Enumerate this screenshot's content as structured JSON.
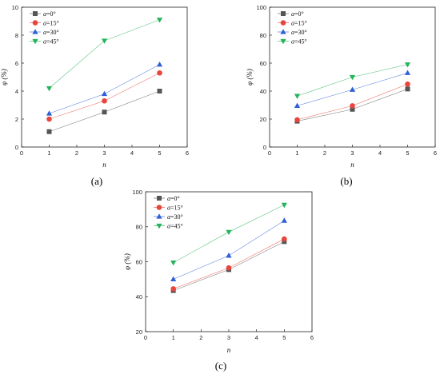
{
  "figure": {
    "panel_labels": [
      "(a)",
      "(b)",
      "(c)"
    ]
  },
  "series_style": [
    {
      "color": "#555555",
      "marker": "square"
    },
    {
      "color": "#e8453c",
      "marker": "circle"
    },
    {
      "color": "#2f5fd6",
      "marker": "triangle-up"
    },
    {
      "color": "#25b35a",
      "marker": "triangle-down"
    }
  ],
  "chart_data": [
    {
      "type": "line",
      "xlabel": "n",
      "ylabel": "φ (%)",
      "xlim": [
        0,
        6
      ],
      "ylim": [
        0,
        10
      ],
      "xticks": [
        0,
        1,
        2,
        3,
        4,
        5,
        6
      ],
      "yticks": [
        0,
        2,
        4,
        6,
        8,
        10
      ],
      "legend_position": "top-left",
      "x": [
        1,
        3,
        5
      ],
      "series": [
        {
          "name_var": "a",
          "name_rest": "=0°",
          "values": [
            1.1,
            2.5,
            4.0
          ]
        },
        {
          "name_var": "a",
          "name_rest": "=15°",
          "values": [
            2.0,
            3.3,
            5.3
          ]
        },
        {
          "name_var": "a",
          "name_rest": "=30°",
          "values": [
            2.4,
            3.8,
            5.9
          ]
        },
        {
          "name_var": "a",
          "name_rest": "=45°",
          "values": [
            4.2,
            7.6,
            9.1
          ]
        }
      ]
    },
    {
      "type": "line",
      "xlabel": "n",
      "ylabel": "φ (%)",
      "xlim": [
        0,
        6
      ],
      "ylim": [
        0,
        100
      ],
      "xticks": [
        0,
        1,
        2,
        3,
        4,
        5,
        6
      ],
      "yticks": [
        0,
        20,
        40,
        60,
        80,
        100
      ],
      "legend_position": "top-left",
      "x": [
        1,
        3,
        5
      ],
      "series": [
        {
          "name_var": "a",
          "name_rest": "=0°",
          "values": [
            18.5,
            27,
            41.5
          ]
        },
        {
          "name_var": "a",
          "name_rest": "=15°",
          "values": [
            19.5,
            29.5,
            45
          ]
        },
        {
          "name_var": "a",
          "name_rest": "=30°",
          "values": [
            29.5,
            41,
            53
          ]
        },
        {
          "name_var": "a",
          "name_rest": "=45°",
          "values": [
            36.5,
            50,
            59
          ]
        }
      ]
    },
    {
      "type": "line",
      "xlabel": "n",
      "ylabel": "φ (%)",
      "xlim": [
        0,
        6
      ],
      "ylim": [
        20,
        100
      ],
      "xticks": [
        0,
        1,
        2,
        3,
        4,
        5,
        6
      ],
      "yticks": [
        20,
        40,
        60,
        80,
        100
      ],
      "legend_position": "top-left",
      "x": [
        1,
        3,
        5
      ],
      "series": [
        {
          "name_var": "a",
          "name_rest": "=0°",
          "values": [
            43.5,
            55.5,
            71.5
          ]
        },
        {
          "name_var": "a",
          "name_rest": "=15°",
          "values": [
            44.5,
            56.5,
            73
          ]
        },
        {
          "name_var": "a",
          "name_rest": "=30°",
          "values": [
            50,
            63.5,
            83.5
          ]
        },
        {
          "name_var": "a",
          "name_rest": "=45°",
          "values": [
            59.5,
            77,
            92.5
          ]
        }
      ]
    }
  ]
}
